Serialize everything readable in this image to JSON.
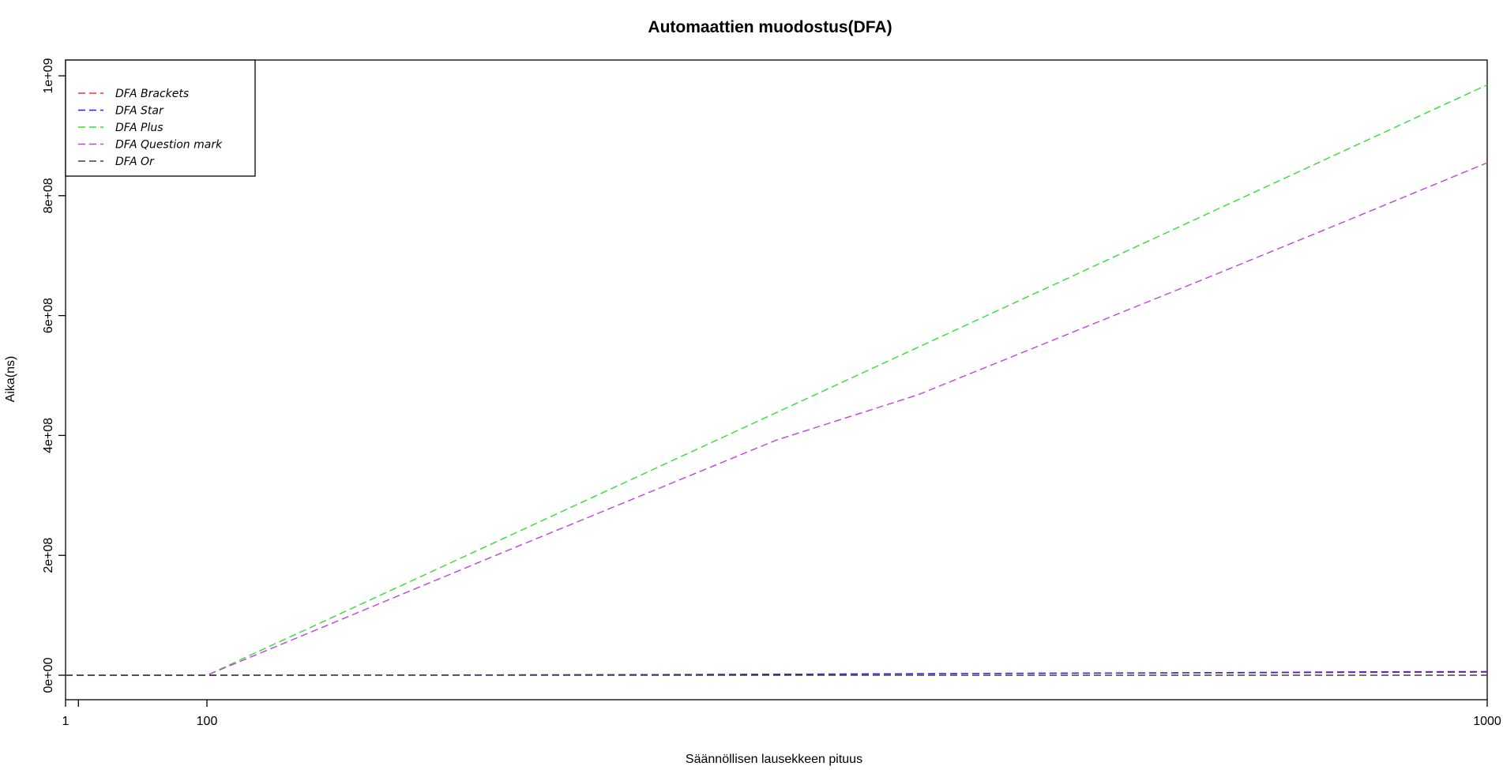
{
  "chart_data": {
    "type": "line",
    "title": "Automaattien muodostus(DFA)",
    "xlabel": "Säännöllisen lausekkeen pituus",
    "ylabel": "Aika(ns)",
    "xlim": [
      1,
      1000
    ],
    "ylim": [
      -40000000,
      1000000000
    ],
    "x_ticks": [
      1,
      10,
      100,
      1000
    ],
    "x_tick_labels": [
      "1",
      "",
      "100",
      "1000"
    ],
    "y_ticks": [
      0,
      200000000,
      400000000,
      600000000,
      800000000,
      1000000000
    ],
    "y_tick_labels": [
      "0e+00",
      "2e+08",
      "4e+08",
      "6e+08",
      "8e+08",
      "1e+09"
    ],
    "legend_position": "top-left",
    "line_style": "dashed",
    "grid": false,
    "series": [
      {
        "name": "DFA Brackets",
        "color": "#ff3030",
        "x": [
          1,
          58,
          100,
          216,
          327,
          434,
          550,
          650,
          716,
          827,
          900,
          1000
        ],
        "y": [
          0,
          0,
          0,
          200000,
          500000,
          1000000,
          2000000,
          3000000,
          3500000,
          4000000,
          4500000,
          5000000
        ]
      },
      {
        "name": "DFA Star",
        "color": "#2020ff",
        "x": [
          1,
          58,
          100,
          216,
          327,
          434,
          550,
          650,
          716,
          827,
          900,
          1000
        ],
        "y": [
          0,
          0,
          0,
          300000,
          700000,
          1200000,
          2000000,
          3000000,
          3500000,
          4500000,
          5500000,
          6000000
        ]
      },
      {
        "name": "DFA Plus",
        "color": "#30e030",
        "x": [
          1,
          58,
          100,
          1000
        ],
        "y": [
          0,
          0,
          0,
          985000000
        ]
      },
      {
        "name": "DFA Question mark",
        "color": "#c040e0",
        "x": [
          1,
          58,
          100,
          300,
          500,
          600,
          700,
          800,
          900,
          1000
        ],
        "y": [
          0,
          0,
          0,
          197000000,
          392000000,
          468000000,
          564000000,
          660000000,
          757000000,
          855000000
        ]
      },
      {
        "name": "DFA Or",
        "color": "#404040",
        "x": [
          1,
          100,
          1000
        ],
        "y": [
          0,
          0,
          0
        ]
      }
    ]
  }
}
